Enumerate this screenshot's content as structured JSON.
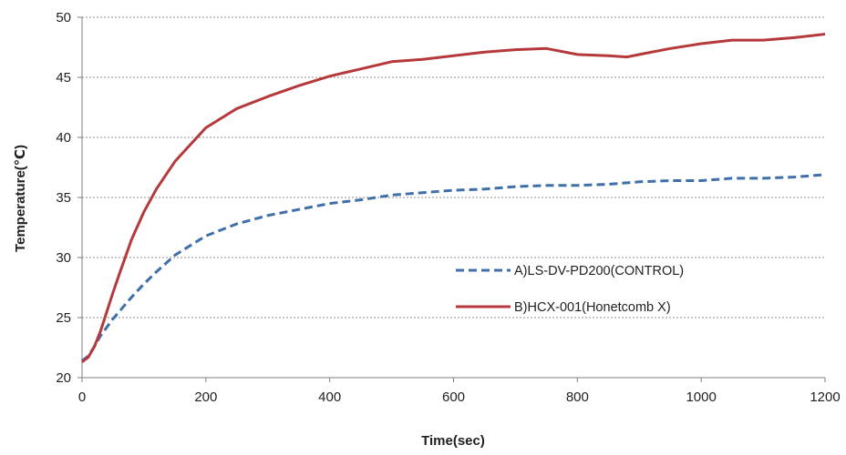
{
  "chart_data": {
    "type": "line",
    "xlabel": "Time(sec)",
    "ylabel": "Temperature(℃)",
    "xlim": [
      0,
      1200
    ],
    "ylim": [
      20,
      50
    ],
    "x_ticks": [
      0,
      200,
      400,
      600,
      800,
      1000,
      1200
    ],
    "y_ticks": [
      20,
      25,
      30,
      35,
      40,
      45,
      50
    ],
    "grid": "horizontal dashed",
    "legend_position": "lower-right",
    "series": [
      {
        "name": "A)LS-DV-PD200(CONTROL)",
        "color": "#3f6fa8",
        "style": "dashed",
        "x": [
          0,
          10,
          20,
          30,
          40,
          50,
          60,
          80,
          100,
          120,
          150,
          200,
          250,
          300,
          350,
          400,
          450,
          500,
          550,
          600,
          650,
          700,
          750,
          800,
          850,
          900,
          950,
          1000,
          1050,
          1100,
          1150,
          1200
        ],
        "y": [
          21.4,
          21.8,
          22.6,
          23.5,
          24.2,
          24.9,
          25.5,
          26.7,
          27.8,
          28.8,
          30.2,
          31.8,
          32.8,
          33.5,
          34.0,
          34.5,
          34.8,
          35.2,
          35.4,
          35.6,
          35.7,
          35.9,
          36.0,
          36.0,
          36.1,
          36.3,
          36.4,
          36.4,
          36.6,
          36.6,
          36.7,
          36.9
        ]
      },
      {
        "name": "B)HCX-001(Honetcomb X)",
        "color": "#b5393b",
        "style": "solid",
        "x": [
          0,
          10,
          20,
          30,
          40,
          50,
          60,
          80,
          100,
          120,
          150,
          200,
          250,
          300,
          350,
          400,
          450,
          500,
          550,
          600,
          650,
          700,
          750,
          800,
          850,
          880,
          900,
          950,
          1000,
          1050,
          1100,
          1150,
          1200
        ],
        "y": [
          21.3,
          21.7,
          22.6,
          23.9,
          25.5,
          27.1,
          28.6,
          31.5,
          33.8,
          35.7,
          38.0,
          40.8,
          42.4,
          43.4,
          44.3,
          45.1,
          45.7,
          46.3,
          46.5,
          46.8,
          47.1,
          47.3,
          47.4,
          46.9,
          46.8,
          46.7,
          46.9,
          47.4,
          47.8,
          48.1,
          48.1,
          48.3,
          48.6
        ]
      }
    ]
  }
}
